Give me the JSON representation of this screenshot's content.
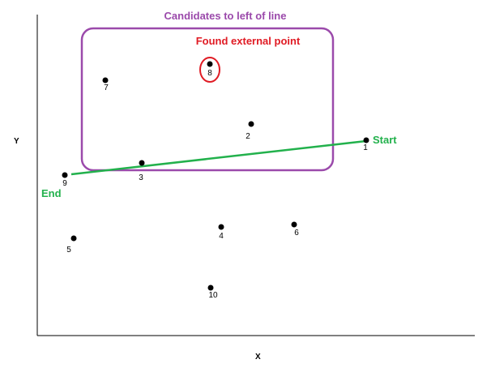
{
  "colors": {
    "axis": "#000000",
    "point": "#000000",
    "line": "#22b14c",
    "box": "#9b4aab",
    "highlight": "#e01b24",
    "line_label": "#22b14c",
    "box_label": "#9b4aab",
    "found_label": "#e01b24"
  },
  "diagram": {
    "x_label": "X",
    "y_label": "Y",
    "box_title": "Candidates to left of line",
    "found_label": "Found external point",
    "start_label": "Start",
    "end_label": "End"
  },
  "points": [
    {
      "id": "1"
    },
    {
      "id": "2"
    },
    {
      "id": "3"
    },
    {
      "id": "4"
    },
    {
      "id": "5"
    },
    {
      "id": "6"
    },
    {
      "id": "7"
    },
    {
      "id": "8"
    },
    {
      "id": "9"
    },
    {
      "id": "10"
    }
  ]
}
